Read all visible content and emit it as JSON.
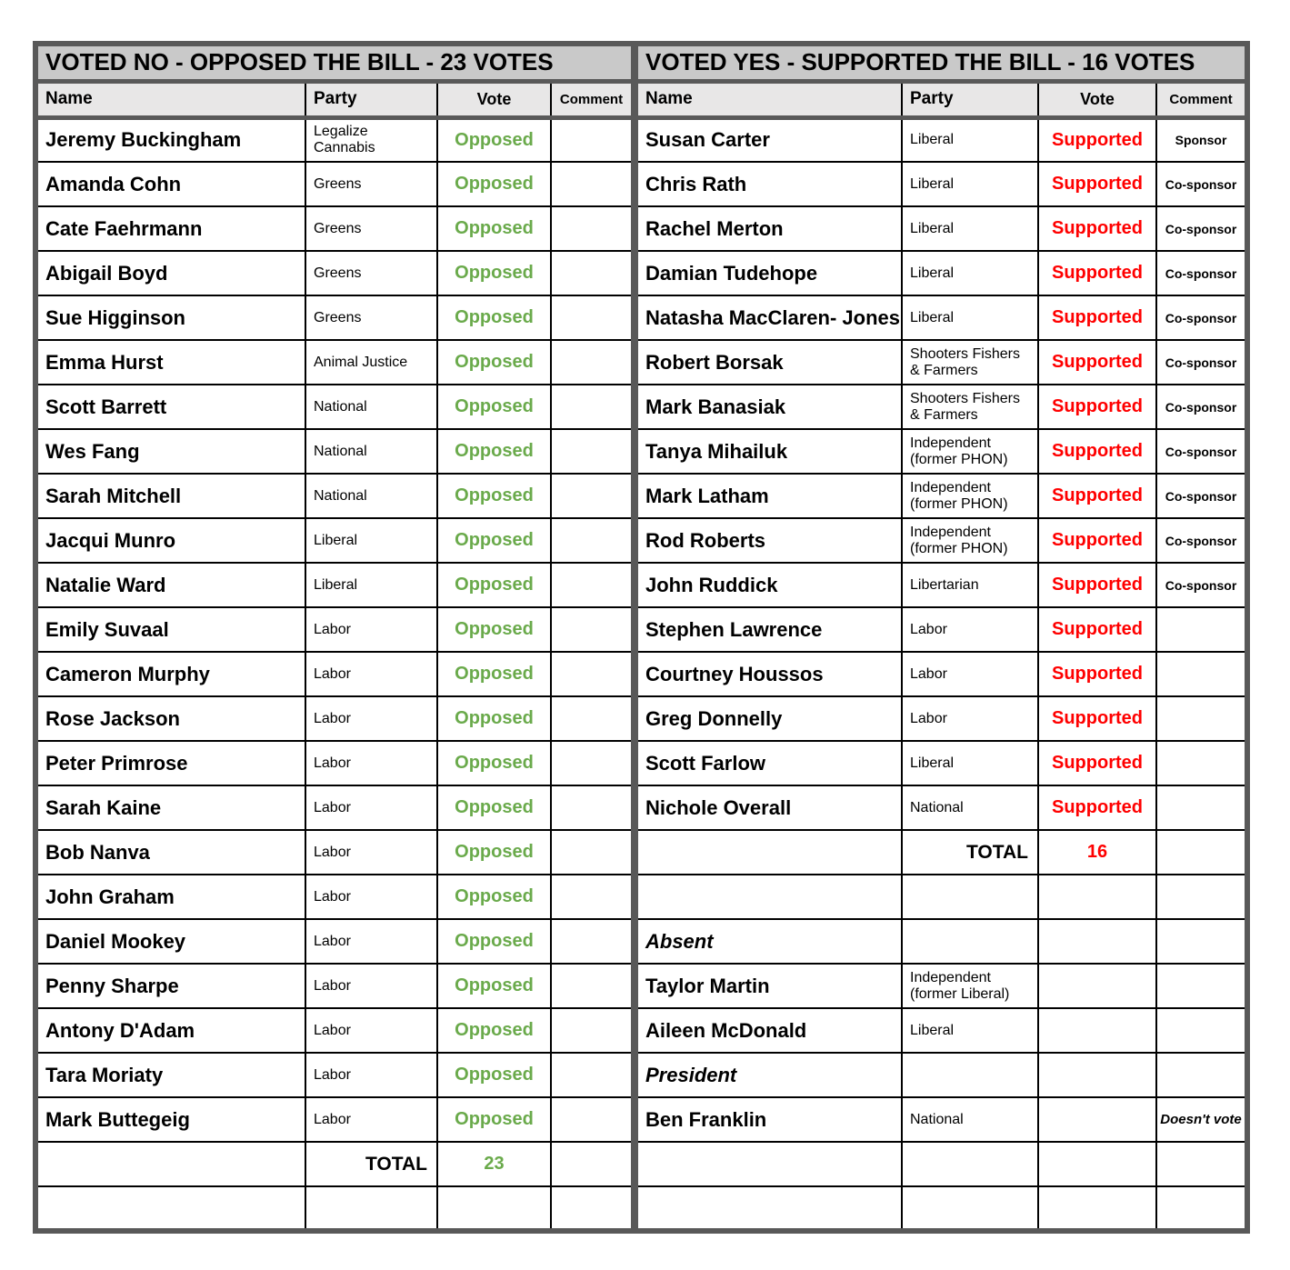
{
  "page": {
    "background": "#FFFFFF"
  },
  "colors": {
    "opposed_green": "#6AAA4B",
    "supported_red": "#FF0000",
    "title_bar_bg": "#C9C9C9",
    "header_row_bg": "#E8E7E7",
    "thick_border_gray": "#595959",
    "grid_line_black": "#000000"
  },
  "tables": {
    "no": {
      "title": "VOTED NO - OPPOSED THE BILL - 23 VOTES",
      "columns": [
        "Name",
        "Party",
        "Vote",
        "Comment"
      ],
      "rows": [
        {
          "kind": "data",
          "name": "Jeremy Buckingham",
          "party": "Legalize Cannabis",
          "vote": "Opposed",
          "comment": ""
        },
        {
          "kind": "data",
          "name": "Amanda Cohn",
          "party": "Greens",
          "vote": "Opposed",
          "comment": ""
        },
        {
          "kind": "data",
          "name": "Cate Faehrmann",
          "party": "Greens",
          "vote": "Opposed",
          "comment": ""
        },
        {
          "kind": "data",
          "name": "Abigail Boyd",
          "party": "Greens",
          "vote": "Opposed",
          "comment": ""
        },
        {
          "kind": "data",
          "name": "Sue Higginson",
          "party": "Greens",
          "vote": "Opposed",
          "comment": ""
        },
        {
          "kind": "data",
          "name": "Emma Hurst",
          "party": "Animal Justice",
          "vote": "Opposed",
          "comment": ""
        },
        {
          "kind": "data",
          "name": "Scott Barrett",
          "party": "National",
          "vote": "Opposed",
          "comment": ""
        },
        {
          "kind": "data",
          "name": "Wes Fang",
          "party": "National",
          "vote": "Opposed",
          "comment": ""
        },
        {
          "kind": "data",
          "name": "Sarah Mitchell",
          "party": "National",
          "vote": "Opposed",
          "comment": ""
        },
        {
          "kind": "data",
          "name": "Jacqui Munro",
          "party": "Liberal",
          "vote": "Opposed",
          "comment": ""
        },
        {
          "kind": "data",
          "name": "Natalie Ward",
          "party": "Liberal",
          "vote": "Opposed",
          "comment": ""
        },
        {
          "kind": "data",
          "name": "Emily Suvaal",
          "party": "Labor",
          "vote": "Opposed",
          "comment": ""
        },
        {
          "kind": "data",
          "name": "Cameron Murphy",
          "party": "Labor",
          "vote": "Opposed",
          "comment": ""
        },
        {
          "kind": "data",
          "name": "Rose Jackson",
          "party": "Labor",
          "vote": "Opposed",
          "comment": ""
        },
        {
          "kind": "data",
          "name": "Peter Primrose",
          "party": "Labor",
          "vote": "Opposed",
          "comment": ""
        },
        {
          "kind": "data",
          "name": "Sarah Kaine",
          "party": "Labor",
          "vote": "Opposed",
          "comment": ""
        },
        {
          "kind": "data",
          "name": "Bob Nanva",
          "party": "Labor",
          "vote": "Opposed",
          "comment": ""
        },
        {
          "kind": "data",
          "name": "John Graham",
          "party": "Labor",
          "vote": "Opposed",
          "comment": ""
        },
        {
          "kind": "data",
          "name": "Daniel Mookey",
          "party": "Labor",
          "vote": "Opposed",
          "comment": ""
        },
        {
          "kind": "data",
          "name": "Penny Sharpe",
          "party": "Labor",
          "vote": "Opposed",
          "comment": ""
        },
        {
          "kind": "data",
          "name": "Antony D'Adam",
          "party": "Labor",
          "vote": "Opposed",
          "comment": ""
        },
        {
          "kind": "data",
          "name": "Tara Moriaty",
          "party": "Labor",
          "vote": "Opposed",
          "comment": ""
        },
        {
          "kind": "data",
          "name": "Mark Buttegeig",
          "party": "Labor",
          "vote": "Opposed",
          "comment": ""
        },
        {
          "kind": "total",
          "label": "TOTAL",
          "value": "23"
        },
        {
          "kind": "empty"
        }
      ]
    },
    "yes": {
      "title": "VOTED YES - SUPPORTED THE BILL - 16 VOTES",
      "columns": [
        "Name",
        "Party",
        "Vote",
        "Comment"
      ],
      "rows": [
        {
          "kind": "data",
          "name": "Susan Carter",
          "party": "Liberal",
          "vote": "Supported",
          "comment": "Sponsor"
        },
        {
          "kind": "data",
          "name": "Chris Rath",
          "party": "Liberal",
          "vote": "Supported",
          "comment": "Co-sponsor"
        },
        {
          "kind": "data",
          "name": "Rachel Merton",
          "party": "Liberal",
          "vote": "Supported",
          "comment": "Co-sponsor"
        },
        {
          "kind": "data",
          "name": "Damian Tudehope",
          "party": "Liberal",
          "vote": "Supported",
          "comment": "Co-sponsor"
        },
        {
          "kind": "data",
          "name": "Natasha MacClaren- Jones",
          "party": "Liberal",
          "vote": "Supported",
          "comment": "Co-sponsor"
        },
        {
          "kind": "data",
          "name": "Robert Borsak",
          "party": "Shooters Fishers & Farmers",
          "vote": "Supported",
          "comment": "Co-sponsor"
        },
        {
          "kind": "data",
          "name": "Mark Banasiak",
          "party": "Shooters Fishers & Farmers",
          "vote": "Supported",
          "comment": "Co-sponsor"
        },
        {
          "kind": "data",
          "name": "Tanya Mihailuk",
          "party": "Independent (former PHON)",
          "vote": "Supported",
          "comment": "Co-sponsor"
        },
        {
          "kind": "data",
          "name": "Mark Latham",
          "party": "Independent (former PHON)",
          "vote": "Supported",
          "comment": "Co-sponsor"
        },
        {
          "kind": "data",
          "name": "Rod Roberts",
          "party": "Independent (former PHON)",
          "vote": "Supported",
          "comment": "Co-sponsor"
        },
        {
          "kind": "data",
          "name": "John Ruddick",
          "party": "Libertarian",
          "vote": "Supported",
          "comment": "Co-sponsor"
        },
        {
          "kind": "data",
          "name": "Stephen Lawrence",
          "party": "Labor",
          "vote": "Supported",
          "comment": ""
        },
        {
          "kind": "data",
          "name": "Courtney Houssos",
          "party": "Labor",
          "vote": "Supported",
          "comment": ""
        },
        {
          "kind": "data",
          "name": "Greg Donnelly",
          "party": "Labor",
          "vote": "Supported",
          "comment": ""
        },
        {
          "kind": "data",
          "name": "Scott Farlow",
          "party": "Liberal",
          "vote": "Supported",
          "comment": ""
        },
        {
          "kind": "data",
          "name": "Nichole Overall",
          "party": "National",
          "vote": "Supported",
          "comment": ""
        },
        {
          "kind": "total",
          "label": "TOTAL",
          "value": "16"
        },
        {
          "kind": "empty"
        },
        {
          "kind": "section",
          "label": "Absent"
        },
        {
          "kind": "data",
          "name": "Taylor Martin",
          "party": "Independent (former Liberal)",
          "vote": "",
          "comment": ""
        },
        {
          "kind": "data",
          "name": "Aileen McDonald",
          "party": "Liberal",
          "vote": "",
          "comment": ""
        },
        {
          "kind": "section",
          "label": "President"
        },
        {
          "kind": "data",
          "name": "Ben Franklin",
          "party": "National",
          "vote": "",
          "comment": "Doesn't vote",
          "comment_italic": true
        },
        {
          "kind": "empty"
        },
        {
          "kind": "empty"
        }
      ]
    }
  }
}
